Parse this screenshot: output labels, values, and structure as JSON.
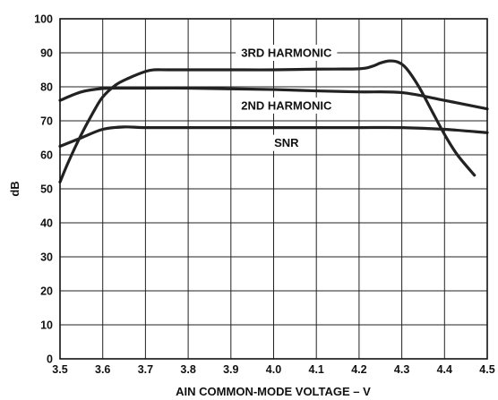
{
  "chart_data": {
    "type": "line",
    "title": "",
    "xlabel": "AIN COMMON-MODE VOLTAGE – V",
    "ylabel": "dB",
    "xlim": [
      3.5,
      4.5
    ],
    "ylim": [
      0,
      100
    ],
    "grid": true,
    "legend": "inline labels",
    "x_ticks": [
      "3.5",
      "3.6",
      "3.7",
      "3.8",
      "3.9",
      "4.0",
      "4.1",
      "4.2",
      "4.3",
      "4.4",
      "4.5"
    ],
    "y_ticks": [
      "0",
      "10",
      "20",
      "30",
      "40",
      "50",
      "60",
      "70",
      "80",
      "90",
      "100"
    ],
    "series": [
      {
        "name": "3RD HARMONIC",
        "x": [
          3.5,
          3.52,
          3.55,
          3.58,
          3.6,
          3.63,
          3.66,
          3.7,
          3.72,
          3.75,
          3.8,
          3.9,
          4.0,
          4.1,
          4.2,
          4.23,
          4.25,
          4.27,
          4.29,
          4.31,
          4.34,
          4.37,
          4.4,
          4.43,
          4.47
        ],
        "y": [
          52,
          58,
          66,
          73,
          77,
          80.5,
          82.5,
          84.5,
          85,
          85,
          85,
          85,
          85,
          85.2,
          85.3,
          86,
          87,
          87.6,
          87.3,
          85.5,
          80,
          73,
          66,
          60,
          54
        ]
      },
      {
        "name": "2ND HARMONIC",
        "x": [
          3.5,
          3.55,
          3.6,
          3.65,
          3.7,
          3.8,
          3.9,
          4.0,
          4.1,
          4.2,
          4.3,
          4.4,
          4.5
        ],
        "y": [
          76,
          78.5,
          79.5,
          79.6,
          79.6,
          79.6,
          79.4,
          79.2,
          78.8,
          78.5,
          78.3,
          76,
          73.5
        ]
      },
      {
        "name": "SNR",
        "x": [
          3.5,
          3.55,
          3.6,
          3.65,
          3.7,
          3.8,
          3.9,
          4.0,
          4.1,
          4.2,
          4.3,
          4.4,
          4.5
        ],
        "y": [
          62.5,
          65,
          67.5,
          68.2,
          68,
          68,
          68,
          68,
          68,
          68,
          68,
          67.5,
          66.5
        ]
      }
    ],
    "annotations": [
      {
        "text": "3RD HARMONIC",
        "series": "3RD HARMONIC",
        "x": 4.03,
        "y": 90
      },
      {
        "text": "2ND HARMONIC",
        "series": "2ND HARMONIC",
        "x": 4.03,
        "y": 74.5
      },
      {
        "text": "SNR",
        "series": "SNR",
        "x": 4.03,
        "y": 63.5
      }
    ]
  }
}
